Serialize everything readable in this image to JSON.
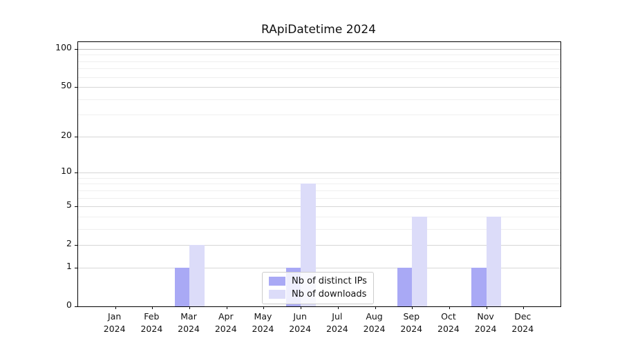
{
  "title": "RApiDatetime 2024",
  "chart_data": {
    "type": "bar",
    "title": "RApiDatetime 2024",
    "scale": "log1p",
    "categories": [
      "Jan 2024",
      "Feb 2024",
      "Mar 2024",
      "Apr 2024",
      "May 2024",
      "Jun 2024",
      "Jul 2024",
      "Aug 2024",
      "Sep 2024",
      "Oct 2024",
      "Nov 2024",
      "Dec 2024"
    ],
    "series": [
      {
        "name": "Nb of distinct IPs",
        "color": "#a9a9f5",
        "values": [
          0,
          0,
          1,
          0,
          0,
          1,
          0,
          0,
          1,
          0,
          1,
          0
        ]
      },
      {
        "name": "Nb of downloads",
        "color": "#dcdcf9",
        "values": [
          0,
          0,
          2,
          0,
          0,
          8,
          0,
          0,
          4,
          0,
          4,
          0
        ]
      }
    ],
    "y_ticks": [
      0,
      1,
      2,
      5,
      10,
      20,
      50,
      100
    ],
    "y_minor_gridlines": [
      3,
      4,
      6,
      7,
      8,
      9,
      30,
      40,
      60,
      70,
      80,
      90
    ],
    "ylim": [
      0,
      100
    ],
    "grid": true,
    "legend_position": "lower center",
    "colors": {
      "axis": "#000000",
      "grid_major": "#d6d6d6",
      "grid_top": "#bdbdbd",
      "grid_minor": "#efefef",
      "legend_border": "#cccccc"
    }
  }
}
